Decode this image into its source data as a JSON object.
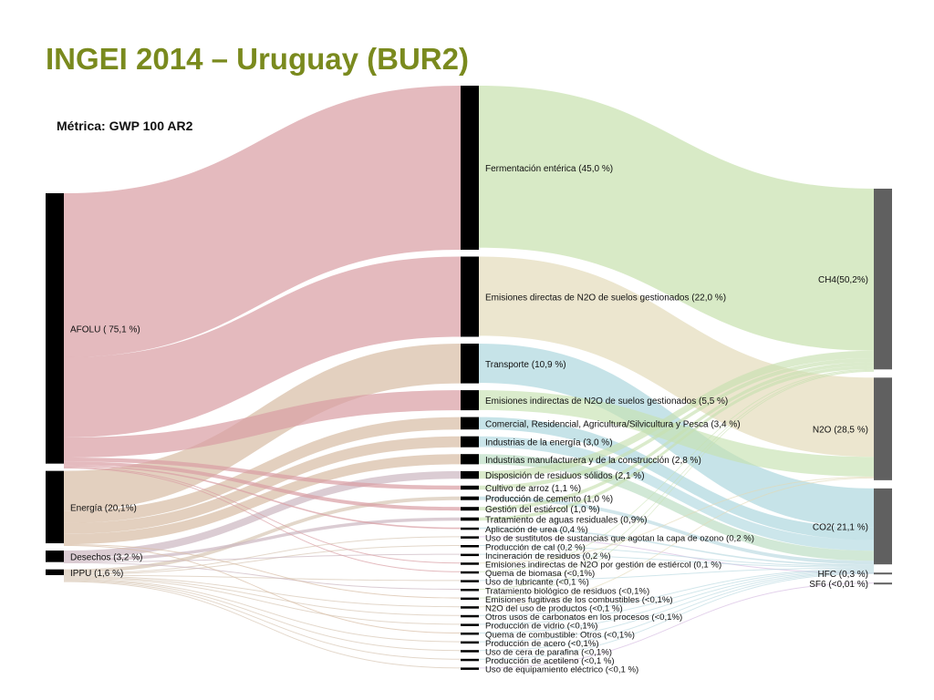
{
  "title": "INGEI 2014 – Uruguay (BUR2)",
  "metric": "Métrica: GWP 100 AR2",
  "chart_data": {
    "type": "sankey",
    "sources": [
      {
        "name": "AFOLU ( 75,1 %)",
        "value": 75.1,
        "color": "#d9a0a5"
      },
      {
        "name": "Energía (20,1%)",
        "value": 20.1,
        "color": "#d8bea6"
      },
      {
        "name": "Desechos (3,2 %)",
        "value": 3.2,
        "color": "#cdb8c2"
      },
      {
        "name": "IPPU (1,6 %)",
        "value": 1.6,
        "color": "#d8c8b5"
      }
    ],
    "categories": [
      {
        "name": "Fermentación entérica (45,0 %)",
        "value": 45.0,
        "source": 0,
        "gas": 0,
        "color": "#c3dea8"
      },
      {
        "name": "Emisiones directas de N2O de suelos gestionados (22,0 %)",
        "value": 22.0,
        "source": 0,
        "gas": 1,
        "color": "#e2d8b6"
      },
      {
        "name": "Transporte (10,9 %)",
        "value": 10.9,
        "source": 1,
        "gas": 2,
        "color": "#a8d4dc"
      },
      {
        "name": "Emisiones indirectas de N2O de suelos gestionados (5,5 %)",
        "value": 5.5,
        "source": 0,
        "gas": 1,
        "color": "#c6e2b0"
      },
      {
        "name": "Comercial, Residencial, Agricultura/Silvicultura y Pesca (3,4 %)",
        "value": 3.4,
        "source": 1,
        "gas": 2,
        "color": "#a8d4dc"
      },
      {
        "name": "Industrias de la energía (3,0 %)",
        "value": 3.0,
        "source": 1,
        "gas": 2,
        "color": "#b0d8e0"
      },
      {
        "name": "Industrias manufacturera y de la construcción (2,8 %)",
        "value": 2.8,
        "source": 1,
        "gas": 2,
        "color": "#b8dcc0"
      },
      {
        "name": "Disposición de residuos sólidos (2,1 %)",
        "value": 2.1,
        "source": 2,
        "gas": 0,
        "color": "#c8e0b0"
      },
      {
        "name": "Cultivo de arroz (1,1 %)",
        "value": 1.1,
        "source": 0,
        "gas": 0,
        "color": "#c8e0b0"
      },
      {
        "name": "Producción de cemento (1,0 %)",
        "value": 1.0,
        "source": 3,
        "gas": 2,
        "color": "#b8d8e0"
      },
      {
        "name": "Gestión del estiércol (1,0 %)",
        "value": 1.0,
        "source": 0,
        "gas": 0,
        "color": "#c8e0b0"
      },
      {
        "name": "Tratamiento de aguas residuales (0,9%)",
        "value": 0.9,
        "source": 2,
        "gas": 0,
        "color": "#c8e0b0"
      },
      {
        "name": "Aplicación de urea (0,4 %)",
        "value": 0.4,
        "source": 0,
        "gas": 2,
        "color": "#b8d8e0"
      },
      {
        "name": "Uso de sustitutos de sustancias que agotan la capa de ozono (0,2 %)",
        "value": 0.2,
        "source": 3,
        "gas": 3,
        "color": "#d4b8e0"
      },
      {
        "name": "Producción de cal (0,2 %)",
        "value": 0.2,
        "source": 3,
        "gas": 2,
        "color": "#b8d8e0"
      },
      {
        "name": "Incineración de residuos (0,2 %)",
        "value": 0.2,
        "source": 2,
        "gas": 2,
        "color": "#b8d8e0"
      },
      {
        "name": "Emisiones indirectas de N2O por gestión de estiércol (0,1 %)",
        "value": 0.1,
        "source": 0,
        "gas": 1,
        "color": "#e2d8b6"
      },
      {
        "name": "Quema de biomasa (<0,1%)",
        "value": 0.05,
        "source": 0,
        "gas": 0,
        "color": "#c8e0b0"
      },
      {
        "name": "Uso de lubricante (<0,1 %)",
        "value": 0.05,
        "source": 3,
        "gas": 2,
        "color": "#b8d8e0"
      },
      {
        "name": "Tratamiento biológico de residuos (<0,1%)",
        "value": 0.05,
        "source": 2,
        "gas": 0,
        "color": "#c8e0b0"
      },
      {
        "name": "Emisiones fugitivas de los combustibles (<0,1%)",
        "value": 0.05,
        "source": 1,
        "gas": 0,
        "color": "#c8e0b0"
      },
      {
        "name": "N2O del uso de productos (<0,1 %)",
        "value": 0.05,
        "source": 3,
        "gas": 1,
        "color": "#e2d8b6"
      },
      {
        "name": "Otros usos de carbonatos en los procesos (<0,1%)",
        "value": 0.05,
        "source": 3,
        "gas": 2,
        "color": "#b8d8e0"
      },
      {
        "name": "Producción de vidrio (<0,1%)",
        "value": 0.05,
        "source": 3,
        "gas": 2,
        "color": "#b8d8e0"
      },
      {
        "name": "Quema de combustible: Otros (<0,1%)",
        "value": 0.05,
        "source": 1,
        "gas": 2,
        "color": "#b8d8e0"
      },
      {
        "name": "Producción de acero (<0,1%)",
        "value": 0.05,
        "source": 3,
        "gas": 2,
        "color": "#b8d8e0"
      },
      {
        "name": "Uso de cera de parafina (<0,1%)",
        "value": 0.05,
        "source": 3,
        "gas": 2,
        "color": "#b8d8e0"
      },
      {
        "name": "Producción de acetileno (<0,1 %)",
        "value": 0.05,
        "source": 3,
        "gas": 2,
        "color": "#b8d8e0"
      },
      {
        "name": "Uso de equipamiento eléctrico (<0,1 %)",
        "value": 0.05,
        "source": 3,
        "gas": 4,
        "color": "#d4b8e0"
      }
    ],
    "gases": [
      {
        "name": "CH4(50,2%)",
        "value": 50.2
      },
      {
        "name": "N2O (28,5 %)",
        "value": 28.5
      },
      {
        "name": "CO2( 21,1 %)",
        "value": 21.1
      },
      {
        "name": "HFC (0,3 %)",
        "value": 0.3
      },
      {
        "name": "SF6 (<0,01 %)",
        "value": 0.01
      }
    ]
  }
}
